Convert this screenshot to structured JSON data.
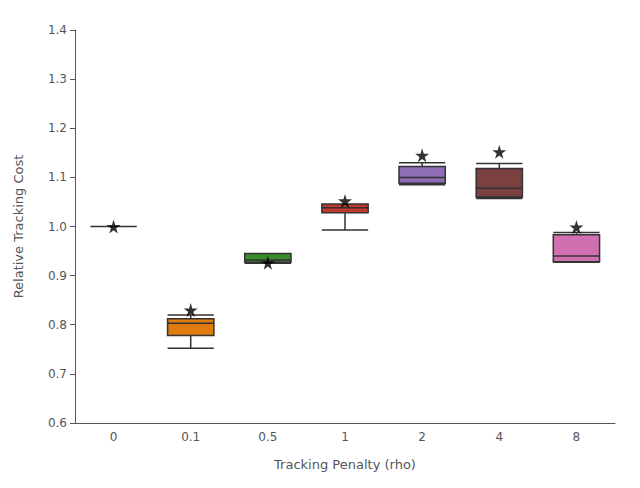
{
  "chart_data": {
    "type": "box",
    "xlabel": "Tracking Penalty (rho)",
    "ylabel": "Relative Tracking Cost",
    "categories": [
      "0",
      "0.1",
      "0.5",
      "1",
      "2",
      "4",
      "8"
    ],
    "colors": [
      "#808080",
      "#E07B10",
      "#3A8A2E",
      "#C0392B",
      "#8E6DB4",
      "#7B4040",
      "#D070B0"
    ],
    "boxes": [
      {
        "whisker_low": 1.0,
        "q1": 1.0,
        "median": 1.0,
        "q3": 1.0,
        "whisker_high": 1.0,
        "mean": 1.0
      },
      {
        "whisker_low": 0.752,
        "q1": 0.778,
        "median": 0.803,
        "q3": 0.812,
        "whisker_high": 0.82,
        "mean": 0.83
      },
      {
        "whisker_low": 0.925,
        "q1": 0.927,
        "median": 0.932,
        "q3": 0.945,
        "whisker_high": 0.945,
        "mean": 0.926
      },
      {
        "whisker_low": 0.993,
        "q1": 1.028,
        "median": 1.038,
        "q3": 1.046,
        "whisker_high": 1.046,
        "mean": 1.052
      },
      {
        "whisker_low": 1.085,
        "q1": 1.088,
        "median": 1.1,
        "q3": 1.122,
        "whisker_high": 1.13,
        "mean": 1.145
      },
      {
        "whisker_low": 1.057,
        "q1": 1.06,
        "median": 1.078,
        "q3": 1.118,
        "whisker_high": 1.128,
        "mean": 1.152
      },
      {
        "whisker_low": 0.927,
        "q1": 0.928,
        "median": 0.94,
        "q3": 0.983,
        "whisker_high": 0.988,
        "mean": 0.999
      }
    ],
    "marker": "star",
    "ylim": [
      0.6,
      1.4
    ],
    "yticks": [
      0.6,
      0.7,
      0.8,
      0.9,
      {
        "value": 1.0,
        "label": "1.0"
      },
      1.1,
      1.2,
      1.3,
      1.4
    ],
    "grid": false
  }
}
